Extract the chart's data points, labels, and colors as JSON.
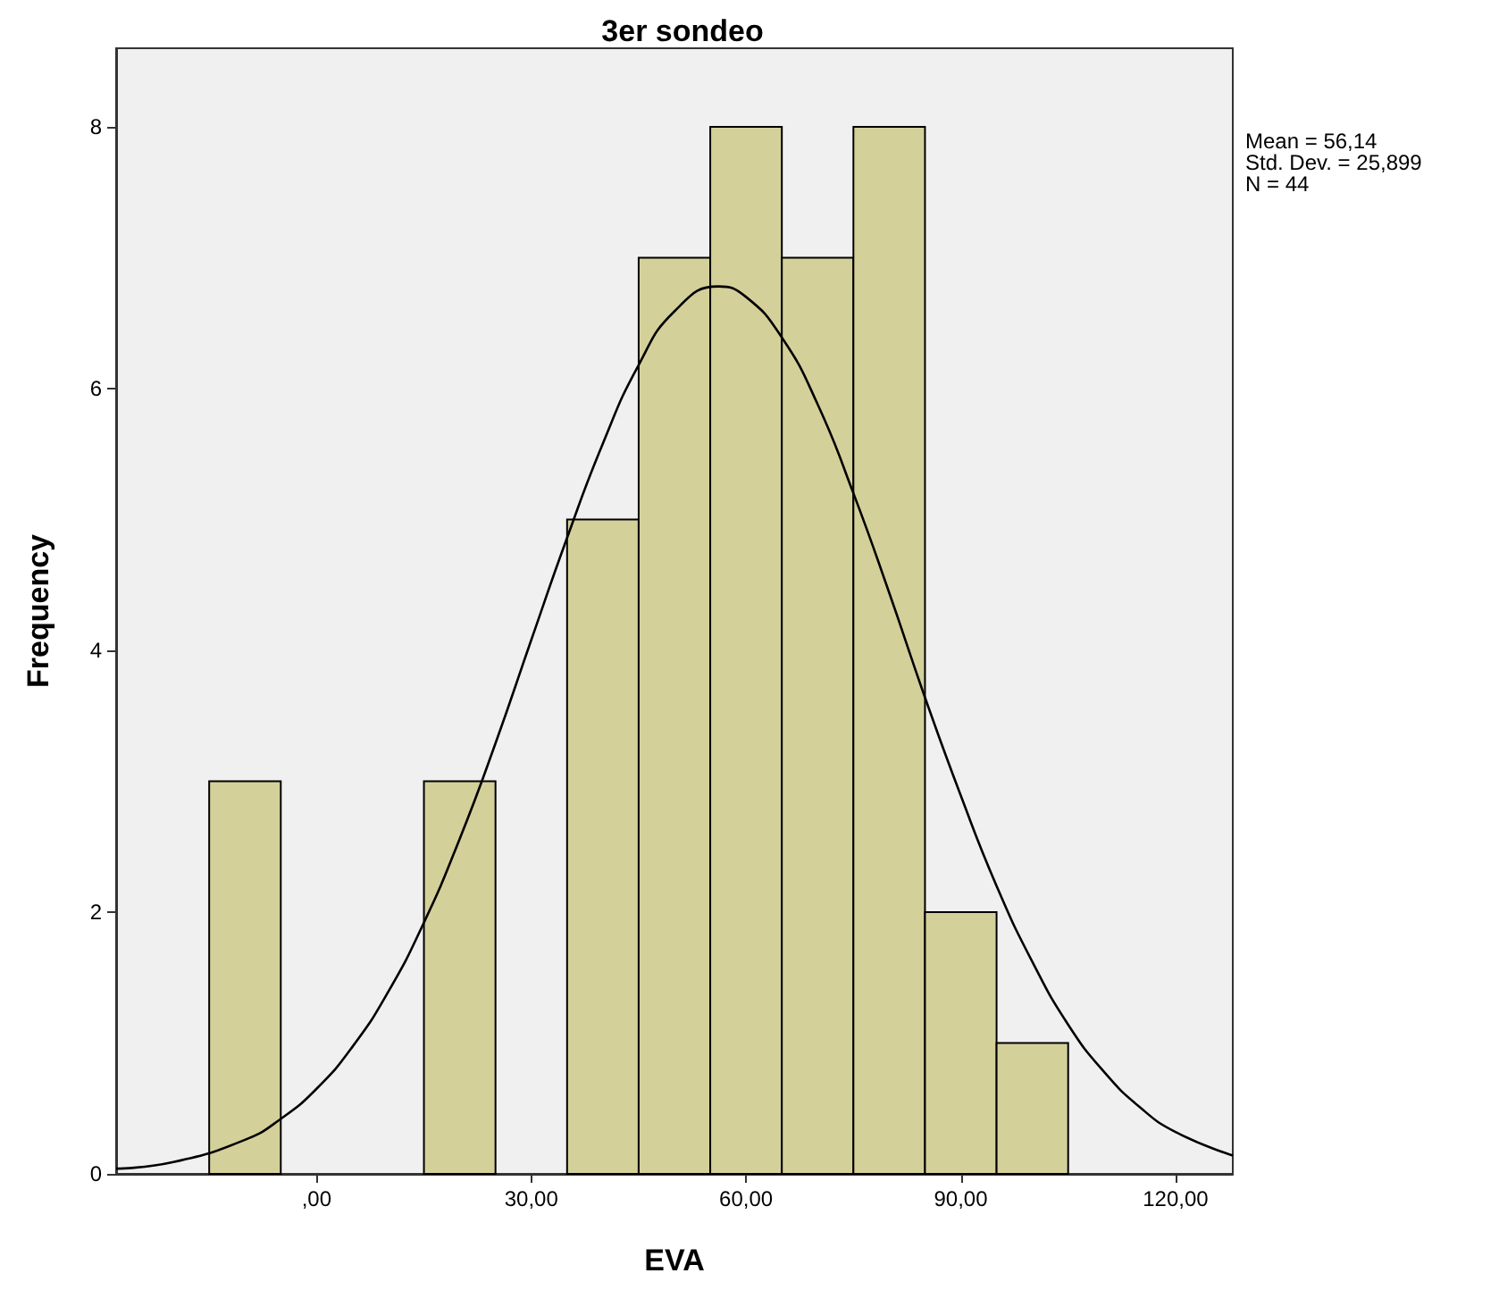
{
  "chart_data": {
    "type": "histogram",
    "title": "3er sondeo",
    "xlabel": "EVA",
    "ylabel": "Frequency",
    "xlim": [
      -28,
      128
    ],
    "xticks": [
      {
        "value": 0,
        "label": ",00"
      },
      {
        "value": 30,
        "label": "30,00"
      },
      {
        "value": 60,
        "label": "60,00"
      },
      {
        "value": 90,
        "label": "90,00"
      },
      {
        "value": 120,
        "label": "120,00"
      }
    ],
    "ylim": [
      0,
      8.6
    ],
    "yticks": [
      0,
      2,
      4,
      6,
      8
    ],
    "marker": "none",
    "line_style": "solid",
    "series": [
      {
        "color": "#d4d09a",
        "bins": [
          -15,
          -5,
          5,
          15,
          25,
          35,
          45,
          55,
          65,
          75,
          85,
          95,
          105
        ],
        "values": [
          3,
          0,
          0,
          3,
          0,
          5,
          7,
          8,
          7,
          8,
          2,
          1
        ]
      },
      {
        "type": "line",
        "color": "#000000",
        "x": [
          -28,
          -20,
          -10,
          -5,
          0,
          5,
          10,
          15,
          20,
          25,
          30,
          35,
          40,
          45,
          50,
          56.14,
          60,
          65,
          70,
          75,
          80,
          85,
          90,
          95,
          100,
          105,
          110,
          115,
          120,
          128
        ],
        "values": [
          0.04,
          0.09,
          0.26,
          0.42,
          0.65,
          0.97,
          1.39,
          1.92,
          2.56,
          3.29,
          4.08,
          4.86,
          5.58,
          6.18,
          6.59,
          6.78,
          6.7,
          6.39,
          5.88,
          5.2,
          4.44,
          3.64,
          2.89,
          2.2,
          1.62,
          1.14,
          0.78,
          0.51,
          0.32,
          0.14
        ]
      }
    ],
    "annotations": [
      "Mean = 56,14",
      "Std. Dev. = 25,899",
      "N = 44"
    ]
  }
}
